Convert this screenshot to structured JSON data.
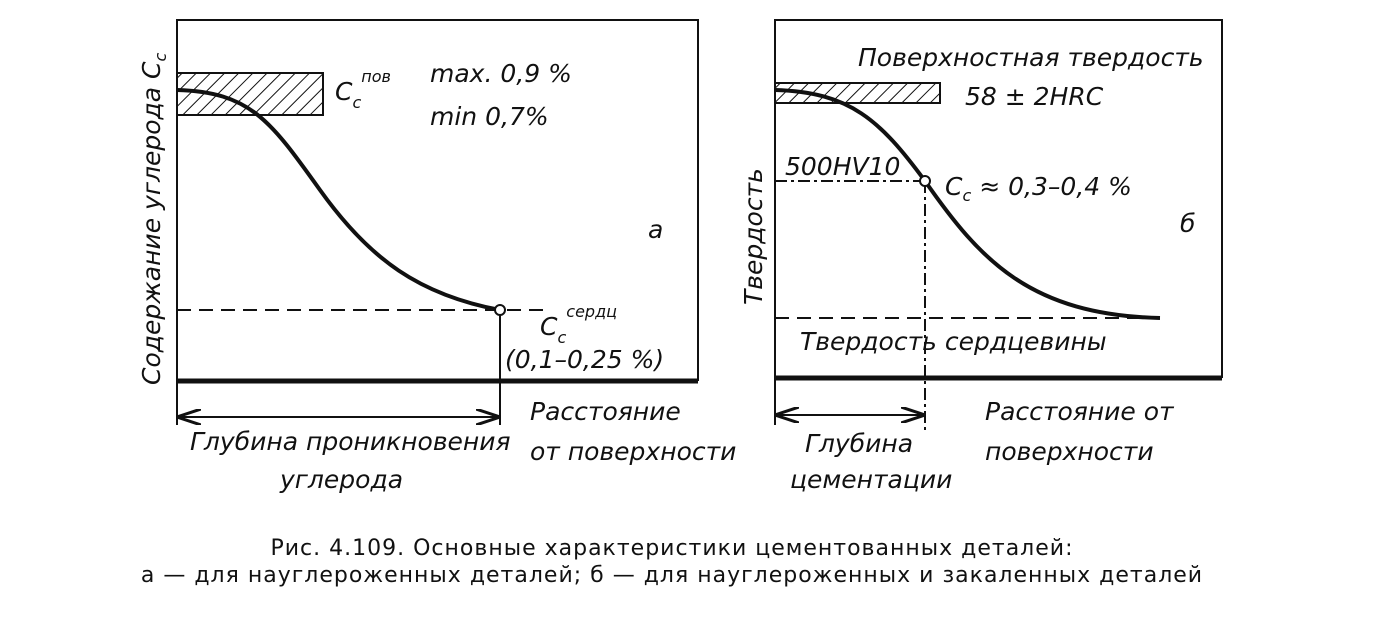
{
  "panel_a": {
    "y_axis_label": {
      "text": "Содержание углерода",
      "symbol": "C",
      "subscript": "c"
    },
    "surface_label": {
      "symbol": "C",
      "subscript": "c",
      "superscript": "пов"
    },
    "max": "max. 0,9 %",
    "min": "min 0,7%",
    "letter": "а",
    "core_label": {
      "symbol": "C",
      "subscript": "c",
      "superscript": "сердц"
    },
    "core_range": "(0,1–0,25 %)",
    "x_label": [
      "Расстояние",
      "от поверхности"
    ],
    "depth_label": [
      "Глубина проникновения",
      "углерода"
    ]
  },
  "panel_b": {
    "y_axis_label": "Твердость",
    "surface_hardness": "Поверхностная твердость",
    "surface_value": "58 ± 2HRC",
    "hv_label": "500HV10",
    "carbon_label": {
      "symbol": "C",
      "subscript": "c",
      "text": "≈ 0,3–0,4 %"
    },
    "letter": "б",
    "core_hardness": "Твердость сердцевины",
    "x_label": [
      "Расстояние от",
      "поверхности"
    ],
    "depth_label": [
      "Глубина",
      "цементации"
    ]
  },
  "caption": [
    "Рис. 4.109. Основные характеристики цементованных деталей:",
    "а — для науглероженных деталей; б — для науглероженных и закаленных деталей"
  ]
}
